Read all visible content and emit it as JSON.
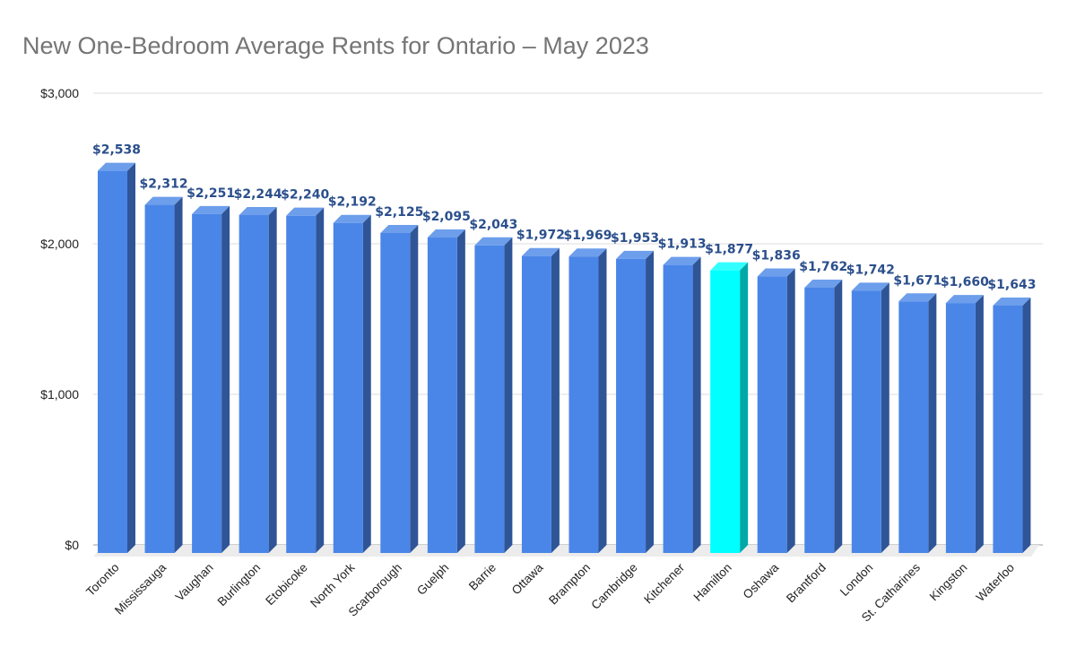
{
  "chart_data": {
    "type": "bar",
    "style": "3d-column",
    "title": "New One-Bedroom Average Rents for Ontario – May 2023",
    "xlabel": "",
    "ylabel": "",
    "ylim": [
      0,
      3000
    ],
    "yticks": [
      0,
      1000,
      2000,
      3000
    ],
    "ytick_labels": [
      "$0",
      "$1,000",
      "$2,000",
      "$3,000"
    ],
    "grid": true,
    "legend": null,
    "categories": [
      "Toronto",
      "Mississauga",
      "Vaughan",
      "Burlington",
      "Etobicoke",
      "North York",
      "Scarborough",
      "Guelph",
      "Barrie",
      "Ottawa",
      "Brampton",
      "Cambridge",
      "Kitchener",
      "Hamilton",
      "Oshawa",
      "Brantford",
      "London",
      "St. Catharines",
      "Kingston",
      "Waterloo"
    ],
    "values": [
      2538,
      2312,
      2251,
      2244,
      2240,
      2192,
      2125,
      2095,
      2043,
      1972,
      1969,
      1953,
      1913,
      1877,
      1836,
      1762,
      1742,
      1671,
      1660,
      1643
    ],
    "data_labels": [
      "$2,538",
      "$2,312",
      "$2,251",
      "$2,244",
      "$2,240",
      "$2,192",
      "$2,125",
      "$2,095",
      "$2,043",
      "$1,972",
      "$1,969",
      "$1,953",
      "$1,913",
      "$1,877",
      "$1,836",
      "$1,762",
      "$1,742",
      "$1,671",
      "$1,660",
      "$1,643"
    ],
    "highlight_category": "Hamilton",
    "colors": {
      "bar_front": "#4a86e8",
      "bar_top": "#6d9eeb",
      "bar_side": "#2f5597",
      "highlight_front": "#00ffff",
      "highlight_top": "#33ffff",
      "highlight_side": "#00a8a8",
      "data_label": "#2b4f8c",
      "gridline": "#dddddd",
      "title": "#757575",
      "floor": "#ececec"
    }
  }
}
